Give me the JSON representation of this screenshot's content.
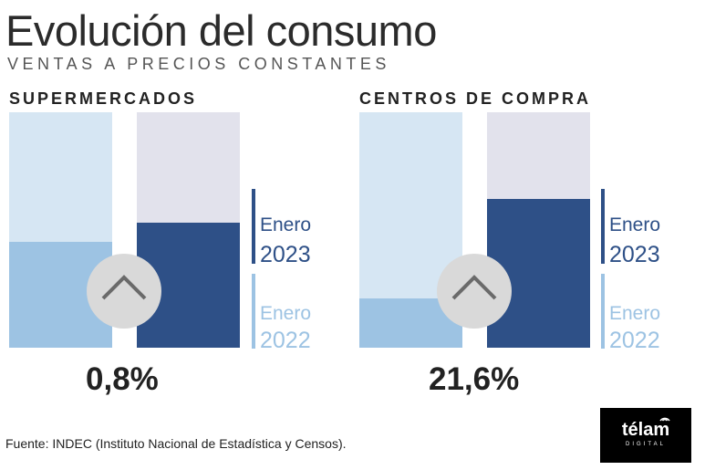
{
  "title": "Evolución del consumo",
  "subtitle": "VENTAS A PRECIOS CONSTANTES",
  "source": "Fuente: INDEC (Instituto Nacional de Estadística y Censos).",
  "logo": {
    "text": "télam",
    "sub": "DIGITAL"
  },
  "colors": {
    "enero_2023": "#2e5087",
    "enero_2022": "#9dc3e3",
    "track_2022": "#d6e6f3",
    "track_2023": "#e2e2ec",
    "arrow_circle": "#d9d9d9"
  },
  "icons": {
    "arrow": "chevron-up-icon"
  },
  "chart_data": [
    {
      "type": "bar",
      "title": "SUPERMERCADOS",
      "categories": [
        "Enero 2022",
        "Enero 2023"
      ],
      "values": [
        0.45,
        0.53
      ],
      "value_scale": "fraction of full column",
      "change_label": "0,8%",
      "legend": [
        {
          "label": "Enero",
          "year": "2023"
        },
        {
          "label": "Enero",
          "year": "2022"
        }
      ]
    },
    {
      "type": "bar",
      "title": "CENTROS DE COMPRA",
      "categories": [
        "Enero 2022",
        "Enero 2023"
      ],
      "values": [
        0.21,
        0.63
      ],
      "value_scale": "fraction of full column",
      "change_label": "21,6%",
      "legend": [
        {
          "label": "Enero",
          "year": "2023"
        },
        {
          "label": "Enero",
          "year": "2022"
        }
      ]
    }
  ]
}
